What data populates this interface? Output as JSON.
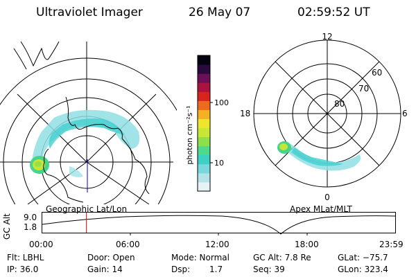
{
  "header": {
    "title": "Ultraviolet Imager",
    "date": "26 May 07",
    "time": "02:59:52 UT"
  },
  "colorbar": {
    "label": "photon cm⁻²s⁻¹",
    "ticks": [
      "100",
      "10"
    ],
    "colors": [
      "#e6f2f4",
      "#b4e3e8",
      "#7ad7de",
      "#3fd0c4",
      "#4fd98a",
      "#8ee04a",
      "#c8e635",
      "#efe52a",
      "#f5b023",
      "#ee6b1e",
      "#d8231f",
      "#a8143e",
      "#6b0f5a",
      "#2a0a3e",
      "#04030f"
    ]
  },
  "geo_map": {
    "caption": "Geographic Lat/Lon"
  },
  "mag_map": {
    "caption": "Apex MLat/MLT",
    "mlt_labels": [
      "12",
      "18",
      "6",
      "0"
    ],
    "lat_labels": [
      "60",
      "70",
      "80"
    ]
  },
  "altitude_plot": {
    "ylabel": "GC Alt",
    "yticks": [
      "9.0",
      "1.8"
    ],
    "xticks": [
      "00:00",
      "06:00",
      "12:00",
      "18:00",
      "23:59"
    ],
    "current_time_fraction": 0.125
  },
  "info": {
    "flt": "Flt: LBHL",
    "ip": "IP: 36.0",
    "door": "Door: Open",
    "gain": "Gain: 14",
    "mode": "Mode: Normal",
    "dsp_label": "Dsp:",
    "dsp_value": "1.7",
    "gc_alt": "GC Alt: 7.8 Re",
    "seq": "Seq: 39",
    "glat": "GLat: −75.7",
    "glon": "GLon: 323.4"
  }
}
